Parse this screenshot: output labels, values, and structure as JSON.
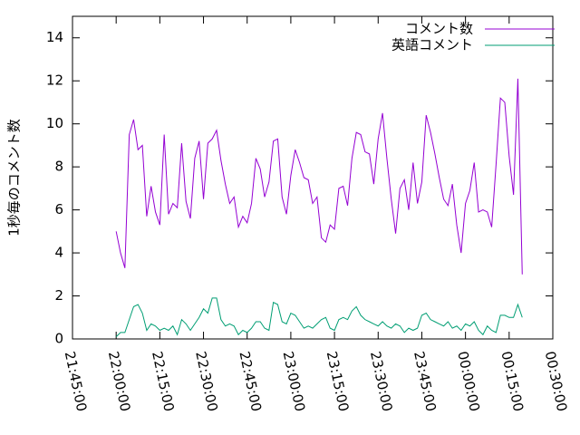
{
  "chart_data": {
    "type": "line",
    "ylabel": "1秒毎のコメント数",
    "x": [
      "22:00:00",
      "22:01:30",
      "22:03:00",
      "22:04:30",
      "22:06:00",
      "22:07:30",
      "22:09:00",
      "22:10:30",
      "22:12:00",
      "22:13:30",
      "22:15:00",
      "22:16:30",
      "22:18:00",
      "22:19:30",
      "22:21:00",
      "22:22:30",
      "22:24:00",
      "22:25:30",
      "22:27:00",
      "22:28:30",
      "22:30:00",
      "22:31:30",
      "22:33:00",
      "22:34:30",
      "22:36:00",
      "22:37:30",
      "22:39:00",
      "22:40:30",
      "22:42:00",
      "22:43:30",
      "22:45:00",
      "22:46:30",
      "22:48:00",
      "22:49:30",
      "22:51:00",
      "22:52:30",
      "22:54:00",
      "22:55:30",
      "22:57:00",
      "22:58:30",
      "23:00:00",
      "23:01:30",
      "23:03:00",
      "23:04:30",
      "23:06:00",
      "23:07:30",
      "23:09:00",
      "23:10:30",
      "23:12:00",
      "23:13:30",
      "23:15:00",
      "23:16:30",
      "23:18:00",
      "23:19:30",
      "23:21:00",
      "23:22:30",
      "23:24:00",
      "23:25:30",
      "23:27:00",
      "23:28:30",
      "23:30:00",
      "23:31:30",
      "23:33:00",
      "23:34:30",
      "23:36:00",
      "23:37:30",
      "23:39:00",
      "23:40:30",
      "23:42:00",
      "23:43:30",
      "23:45:00",
      "23:46:30",
      "23:48:00",
      "23:49:30",
      "23:51:00",
      "23:52:30",
      "23:54:00",
      "23:55:30",
      "23:57:00",
      "23:58:30",
      "00:00:00",
      "00:01:30",
      "00:03:00",
      "00:04:30",
      "00:06:00",
      "00:07:30",
      "00:09:00",
      "00:10:30",
      "00:12:00",
      "00:13:30",
      "00:15:00",
      "00:16:30",
      "00:18:00",
      "00:19:30"
    ],
    "series": [
      {
        "name": "コメント数",
        "color": "#9400d3",
        "values": [
          5.0,
          4.0,
          3.3,
          9.5,
          10.2,
          8.8,
          9.0,
          5.7,
          7.1,
          5.9,
          5.3,
          9.5,
          5.8,
          6.3,
          6.1,
          9.1,
          6.4,
          5.6,
          8.4,
          9.2,
          6.5,
          9.1,
          9.3,
          9.7,
          8.3,
          7.2,
          6.3,
          6.6,
          5.2,
          5.7,
          5.4,
          6.3,
          8.4,
          7.9,
          6.6,
          7.3,
          9.2,
          9.3,
          6.6,
          5.8,
          7.6,
          8.8,
          8.2,
          7.5,
          7.4,
          6.3,
          6.6,
          4.7,
          4.5,
          5.3,
          5.1,
          7.0,
          7.1,
          6.2,
          8.4,
          9.6,
          9.5,
          8.7,
          8.6,
          7.2,
          9.3,
          10.5,
          8.4,
          6.5,
          4.9,
          7.0,
          7.4,
          6.0,
          8.2,
          6.3,
          7.3,
          10.4,
          9.6,
          8.6,
          7.5,
          6.5,
          6.2,
          7.2,
          5.3,
          4.0,
          6.3,
          6.9,
          8.2,
          5.9,
          6.0,
          5.9,
          5.2,
          8.1,
          11.2,
          11.0,
          8.5,
          6.7,
          12.1,
          3.0
        ]
      },
      {
        "name": "英語コメント",
        "color": "#009e73",
        "values": [
          0.1,
          0.3,
          0.3,
          0.9,
          1.5,
          1.6,
          1.2,
          0.4,
          0.7,
          0.6,
          0.4,
          0.5,
          0.4,
          0.6,
          0.2,
          0.9,
          0.7,
          0.4,
          0.7,
          1.0,
          1.4,
          1.2,
          1.9,
          1.9,
          0.9,
          0.6,
          0.7,
          0.6,
          0.2,
          0.4,
          0.3,
          0.5,
          0.8,
          0.8,
          0.5,
          0.4,
          1.7,
          1.6,
          0.8,
          0.7,
          1.2,
          1.1,
          0.8,
          0.5,
          0.6,
          0.5,
          0.7,
          0.9,
          1.0,
          0.5,
          0.4,
          0.9,
          1.0,
          0.9,
          1.3,
          1.5,
          1.1,
          0.9,
          0.8,
          0.7,
          0.6,
          0.8,
          0.6,
          0.5,
          0.7,
          0.6,
          0.3,
          0.5,
          0.4,
          0.5,
          1.1,
          1.2,
          0.9,
          0.8,
          0.7,
          0.6,
          0.8,
          0.5,
          0.6,
          0.4,
          0.7,
          0.6,
          0.8,
          0.4,
          0.2,
          0.6,
          0.4,
          0.3,
          1.1,
          1.1,
          1.0,
          1.0,
          1.6,
          1.0
        ]
      }
    ],
    "xlim": [
      "21:45:00",
      "00:30:00"
    ],
    "xticks": [
      "21:45:00",
      "22:00:00",
      "22:15:00",
      "22:30:00",
      "22:45:00",
      "23:00:00",
      "23:15:00",
      "23:30:00",
      "23:45:00",
      "00:00:00",
      "00:15:00",
      "00:30:00"
    ],
    "ylim": [
      0,
      15
    ],
    "yticks": [
      0,
      2,
      4,
      6,
      8,
      10,
      12,
      14
    ],
    "legend": "upper right"
  }
}
